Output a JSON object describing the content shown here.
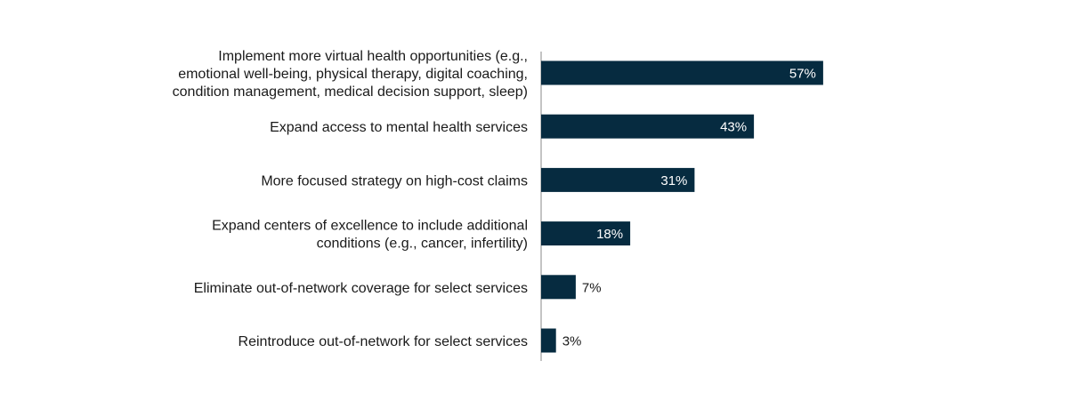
{
  "chart_data": {
    "type": "bar",
    "orientation": "horizontal",
    "title": "",
    "xlabel": "",
    "ylabel": "",
    "xlim": [
      0,
      100
    ],
    "grid": false,
    "legend": "none",
    "unit": "%",
    "bar_color": "#062b40",
    "label_inside_color": "#ffffff",
    "label_outside_color": "#1a1a1a",
    "categories": [
      [
        "Implement more virtual health opportunities (e.g.,",
        "emotional well-being, physical therapy, digital coaching,",
        "condition management, medical decision support, sleep)"
      ],
      [
        "Expand access to mental health services"
      ],
      [
        "More focused strategy on high-cost claims"
      ],
      [
        "Expand centers of excellence to include additional",
        "conditions (e.g., cancer, infertility)"
      ],
      [
        "Eliminate out-of-network coverage for select services"
      ],
      [
        "Reintroduce out-of-network for select services"
      ]
    ],
    "values": [
      57,
      43,
      31,
      18,
      7,
      3
    ],
    "value_labels": [
      "57%",
      "43%",
      "31%",
      "18%",
      "7%",
      "3%"
    ]
  }
}
